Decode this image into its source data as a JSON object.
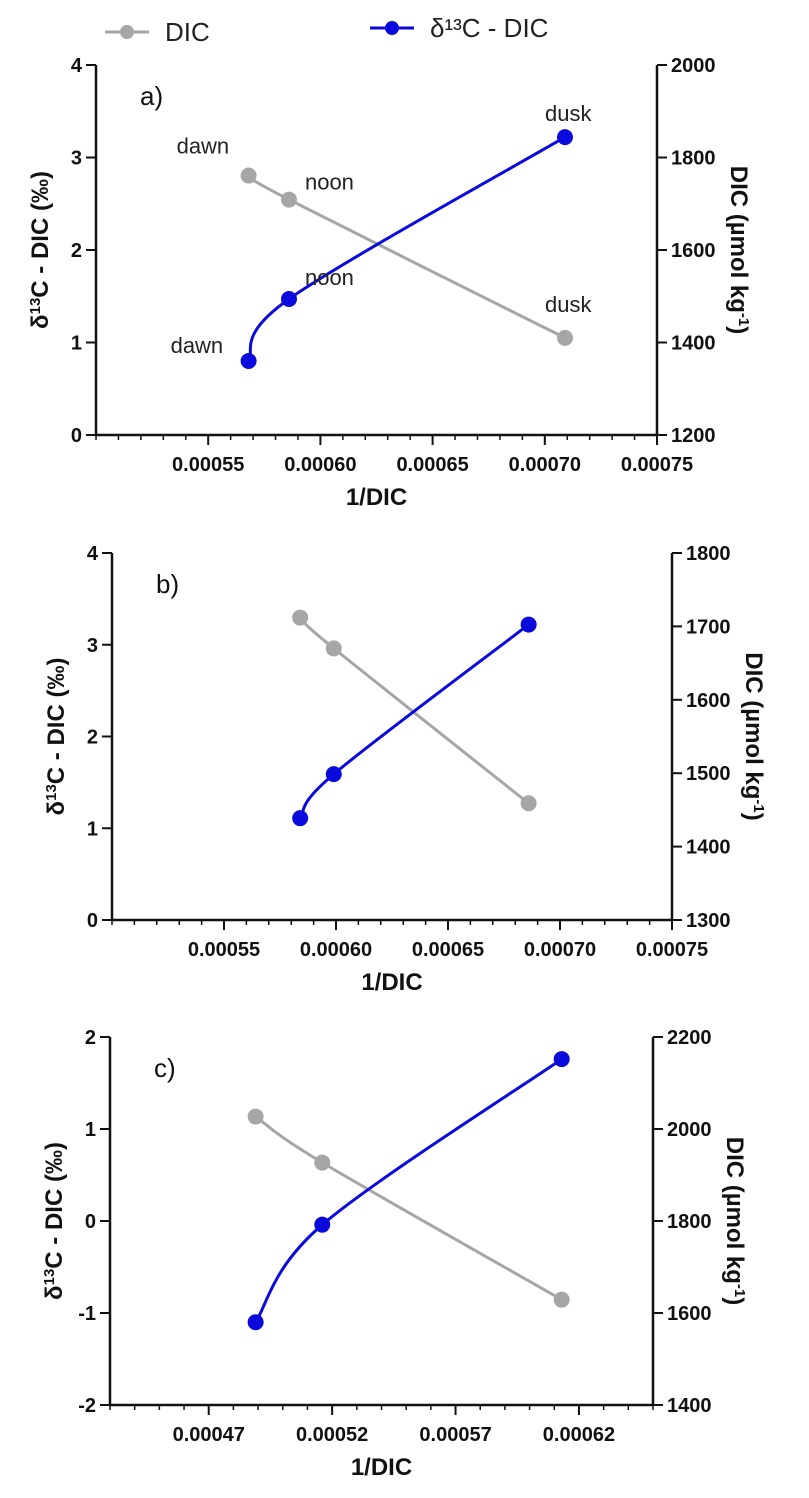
{
  "legend": [
    {
      "label": "DIC",
      "color": "#a6a6a6"
    },
    {
      "label": "δ¹³C - DIC",
      "color": "#0a0adc"
    }
  ],
  "colors": {
    "dic": "#a6a6a6",
    "d13c": "#0a0adc",
    "axis": "#111111"
  },
  "chart_data": [
    {
      "type": "line",
      "panel_label": "a)",
      "xlabel": "1/DIC",
      "ylabel_left": "δ13C - DIC (‰)",
      "ylabel_right": "DIC (µmol kg-1)",
      "xlim": [
        0.0005,
        0.00075
      ],
      "xticks": [
        "0.00055",
        "0.00060",
        "0.00065",
        "0.00070",
        "0.00075"
      ],
      "ylim_left": [
        0,
        4
      ],
      "yticks_left": [
        "0",
        "1",
        "2",
        "3",
        "4"
      ],
      "ylim_right": [
        1200,
        2000
      ],
      "yticks_right": [
        "1200",
        "1400",
        "1600",
        "1800",
        "2000"
      ],
      "series": [
        {
          "name": "DIC",
          "axis": "right",
          "x": [
            0.000568,
            0.000586,
            0.000709
          ],
          "y": [
            1761,
            1709,
            1410
          ],
          "labels": [
            "dawn",
            "noon",
            "dusk"
          ]
        },
        {
          "name": "δ¹³C - DIC",
          "axis": "left",
          "x": [
            0.000568,
            0.000586,
            0.000709
          ],
          "y": [
            0.8,
            1.47,
            3.22
          ],
          "labels": [
            "dawn",
            "noon",
            "dusk"
          ]
        }
      ]
    },
    {
      "type": "line",
      "panel_label": "b)",
      "xlabel": "1/DIC",
      "ylabel_left": "δ13C - DIC (‰)",
      "ylabel_right": "DIC (µmol kg-1)",
      "xlim": [
        0.0005,
        0.00075
      ],
      "xticks": [
        "0.00055",
        "0.00060",
        "0.00065",
        "0.00070",
        "0.00075"
      ],
      "ylim_left": [
        0,
        4
      ],
      "yticks_left": [
        "0",
        "1",
        "2",
        "3",
        "4"
      ],
      "ylim_right": [
        1300,
        1800
      ],
      "yticks_right": [
        "1300",
        "1400",
        "1500",
        "1600",
        "1700",
        "1800"
      ],
      "series": [
        {
          "name": "DIC",
          "axis": "right",
          "x": [
            0.000584,
            0.000599,
            0.000686
          ],
          "y": [
            1712,
            1670,
            1459
          ]
        },
        {
          "name": "δ¹³C - DIC",
          "axis": "left",
          "x": [
            0.000584,
            0.000599,
            0.000686
          ],
          "y": [
            1.11,
            1.59,
            3.22
          ]
        }
      ]
    },
    {
      "type": "line",
      "panel_label": "c)",
      "xlabel": "1/DIC",
      "ylabel_left": "δ13C - DIC (‰)",
      "ylabel_right": "DIC (µmol kg-1)",
      "xlim": [
        0.00043,
        0.00065
      ],
      "xticks": [
        "0.00047",
        "0.00052",
        "0.00057",
        "0.00062"
      ],
      "ylim_left": [
        -2,
        2
      ],
      "yticks_left": [
        "-2",
        "-1",
        "0",
        "1",
        "2"
      ],
      "ylim_right": [
        1400,
        2200
      ],
      "yticks_right": [
        "1400",
        "1600",
        "1800",
        "2000",
        "2200"
      ],
      "series": [
        {
          "name": "DIC",
          "axis": "right",
          "x": [
            0.000489,
            0.000516,
            0.000613
          ],
          "y": [
            2027,
            1927,
            1629
          ]
        },
        {
          "name": "δ¹³C - DIC",
          "axis": "left",
          "x": [
            0.000489,
            0.000516,
            0.000613
          ],
          "y": [
            -1.1,
            -0.04,
            1.76
          ]
        }
      ]
    }
  ]
}
